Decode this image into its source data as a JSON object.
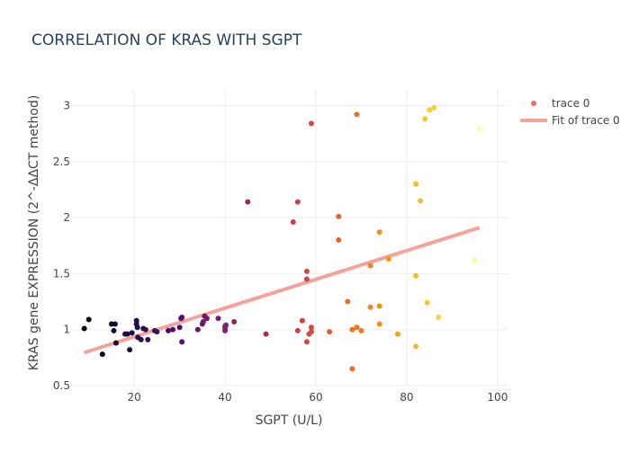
{
  "chart_data": {
    "type": "scatter",
    "title": "CORRELATION OF KRAS WITH SGPT",
    "xlabel": "SGPT (U/L)",
    "ylabel": "KRAS gene EXPRESSION (2^-ΔΔCT method)",
    "xlim": [
      6.3,
      102.4
    ],
    "ylim": [
      0.5,
      3.14
    ],
    "x_ticks": [
      20,
      40,
      60,
      80,
      100
    ],
    "y_ticks": [
      0.5,
      1,
      1.5,
      2,
      2.5,
      3
    ],
    "x_tick_labels": [
      "20",
      "40",
      "60",
      "80",
      "100"
    ],
    "y_tick_labels": [
      "0.5",
      "1",
      "1.5",
      "2",
      "2.5",
      "3"
    ],
    "grid": true,
    "legend_position": "top-right",
    "colorscale": [
      "#000004",
      "#1b0c41",
      "#4a0c6b",
      "#781c6d",
      "#a52c60",
      "#cf4446",
      "#ed6925",
      "#fb9b06",
      "#f7d13d",
      "#fcffa4"
    ],
    "series": [
      {
        "name": "trace 0",
        "type": "scatter",
        "points": [
          [
            9,
            1.01
          ],
          [
            10,
            1.09
          ],
          [
            13,
            0.78
          ],
          [
            15,
            1.05
          ],
          [
            15.5,
            0.99
          ],
          [
            15.8,
            1.05
          ],
          [
            16,
            0.88
          ],
          [
            18,
            0.96
          ],
          [
            18.5,
            0.96
          ],
          [
            19,
            0.82
          ],
          [
            19.5,
            0.97
          ],
          [
            20.5,
            1.08
          ],
          [
            20.5,
            1.05
          ],
          [
            20.7,
            1.02
          ],
          [
            20.8,
            0.93
          ],
          [
            21.5,
            0.91
          ],
          [
            22,
            1.01
          ],
          [
            22.5,
            1.0
          ],
          [
            23,
            0.91
          ],
          [
            24.5,
            0.99
          ],
          [
            25,
            0.98
          ],
          [
            27.5,
            0.99
          ],
          [
            28.5,
            1.0
          ],
          [
            30,
            1.02
          ],
          [
            30.3,
            1.1
          ],
          [
            30.5,
            1.11
          ],
          [
            30.5,
            0.89
          ],
          [
            34,
            1.0
          ],
          [
            35,
            1.05
          ],
          [
            35.2,
            1.07
          ],
          [
            35.5,
            1.12
          ],
          [
            36,
            1.1
          ],
          [
            38.5,
            1.1
          ],
          [
            40,
            0.99
          ],
          [
            40,
            1.01
          ],
          [
            40,
            1.03
          ],
          [
            40.2,
            1.04
          ],
          [
            42,
            1.07
          ],
          [
            45,
            2.14
          ],
          [
            49,
            0.96
          ],
          [
            55,
            1.96
          ],
          [
            56,
            0.99
          ],
          [
            56,
            2.14
          ],
          [
            57,
            1.08
          ],
          [
            58,
            1.45
          ],
          [
            58,
            1.52
          ],
          [
            58,
            0.89
          ],
          [
            58.5,
            0.96
          ],
          [
            59,
            0.98
          ],
          [
            59,
            1.02
          ],
          [
            59,
            2.84
          ],
          [
            63,
            0.98
          ],
          [
            65,
            2.01
          ],
          [
            65,
            1.8
          ],
          [
            67,
            1.25
          ],
          [
            68,
            0.65
          ],
          [
            68,
            1.0
          ],
          [
            69,
            2.92
          ],
          [
            69,
            1.02
          ],
          [
            70,
            0.99
          ],
          [
            72,
            1.2
          ],
          [
            72,
            1.57
          ],
          [
            74,
            1.87
          ],
          [
            74,
            1.05
          ],
          [
            74,
            1.21
          ],
          [
            76,
            1.63
          ],
          [
            78,
            0.96
          ],
          [
            82,
            0.85
          ],
          [
            82,
            1.48
          ],
          [
            82,
            2.3
          ],
          [
            83,
            2.15
          ],
          [
            84,
            2.88
          ],
          [
            84.5,
            1.24
          ],
          [
            85,
            2.96
          ],
          [
            86,
            2.98
          ],
          [
            87,
            1.11
          ],
          [
            95,
            1.62
          ],
          [
            96,
            2.79
          ]
        ]
      },
      {
        "name": "Fit of trace 0",
        "type": "line",
        "color": "#f4a39a",
        "points": [
          [
            9,
            0.795
          ],
          [
            96,
            1.91
          ]
        ]
      }
    ]
  }
}
